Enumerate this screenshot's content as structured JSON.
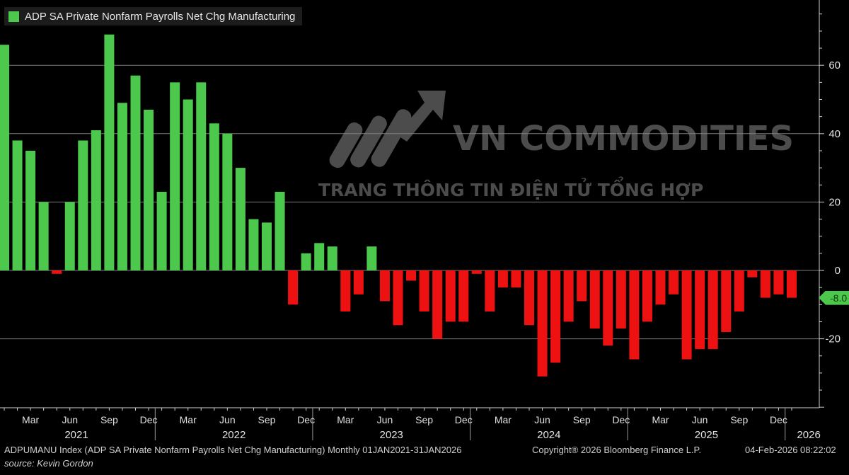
{
  "chart_data": {
    "type": "bar",
    "title": "",
    "legend": [
      {
        "label": "ADP SA Private Nonfarm Payrolls Net Chg Manufacturing",
        "color": "#4cc94c"
      }
    ],
    "positive_color": "#4cc94c",
    "negative_color": "#ee1111",
    "ylim": [
      -40,
      75
    ],
    "yticks": [
      60,
      40,
      20,
      0,
      -20
    ],
    "grid": true,
    "categories": [
      "Jan 2021",
      "Feb 2021",
      "Mar 2021",
      "Apr 2021",
      "May 2021",
      "Jun 2021",
      "Jul 2021",
      "Aug 2021",
      "Sep 2021",
      "Oct 2021",
      "Nov 2021",
      "Dec 2021",
      "Jan 2022",
      "Feb 2022",
      "Mar 2022",
      "Apr 2022",
      "May 2022",
      "Jun 2022",
      "Jul 2022",
      "Aug 2022",
      "Sep 2022",
      "Oct 2022",
      "Nov 2022",
      "Dec 2022",
      "Jan 2023",
      "Feb 2023",
      "Mar 2023",
      "Apr 2023",
      "May 2023",
      "Jun 2023",
      "Jul 2023",
      "Aug 2023",
      "Sep 2023",
      "Oct 2023",
      "Nov 2023",
      "Dec 2023",
      "Jan 2024",
      "Feb 2024",
      "Mar 2024",
      "Apr 2024",
      "May 2024",
      "Jun 2024",
      "Jul 2024",
      "Aug 2024",
      "Sep 2024",
      "Oct 2024",
      "Nov 2024",
      "Dec 2024",
      "Jan 2025",
      "Feb 2025",
      "Mar 2025",
      "Apr 2025",
      "May 2025",
      "Jun 2025",
      "Jul 2025",
      "Aug 2025",
      "Sep 2025",
      "Oct 2025",
      "Nov 2025",
      "Dec 2025",
      "Jan 2026"
    ],
    "values": [
      66,
      38,
      35,
      20,
      -1,
      20,
      38,
      41,
      69,
      49,
      57,
      47,
      23,
      55,
      50,
      55,
      43,
      40,
      30,
      15,
      14,
      23,
      -10,
      5,
      8,
      7,
      -12,
      -7,
      7,
      -9,
      -16,
      -3,
      -12,
      -20,
      -15,
      -15,
      -1,
      -12,
      -5,
      -5,
      -16,
      -31,
      -27,
      -15,
      -9,
      -17,
      -22,
      -17,
      -26,
      -15,
      -10,
      -7,
      -26,
      -23,
      -23,
      -18,
      -12,
      -2,
      -8,
      -7,
      -8
    ],
    "x_month_labels": [
      {
        "label": "Mar",
        "index": 2
      },
      {
        "label": "Jun",
        "index": 5
      },
      {
        "label": "Sep",
        "index": 8
      },
      {
        "label": "Dec",
        "index": 11
      },
      {
        "label": "Mar",
        "index": 14
      },
      {
        "label": "Jun",
        "index": 17
      },
      {
        "label": "Sep",
        "index": 20
      },
      {
        "label": "Dec",
        "index": 23
      },
      {
        "label": "Mar",
        "index": 26
      },
      {
        "label": "Jun",
        "index": 29
      },
      {
        "label": "Sep",
        "index": 32
      },
      {
        "label": "Dec",
        "index": 35
      },
      {
        "label": "Mar",
        "index": 38
      },
      {
        "label": "Jun",
        "index": 41
      },
      {
        "label": "Sep",
        "index": 44
      },
      {
        "label": "Dec",
        "index": 47
      },
      {
        "label": "Mar",
        "index": 50
      },
      {
        "label": "Jun",
        "index": 53
      },
      {
        "label": "Sep",
        "index": 56
      },
      {
        "label": "Dec",
        "index": 59
      }
    ],
    "x_year_labels": [
      {
        "label": "2021",
        "index": 5.5
      },
      {
        "label": "2022",
        "index": 17.5
      },
      {
        "label": "2023",
        "index": 29.5
      },
      {
        "label": "2024",
        "index": 41.5
      },
      {
        "label": "2025",
        "index": 53.5
      },
      {
        "label": "2026",
        "index": 61.3
      }
    ],
    "last_value_label": "-8.0"
  },
  "watermark": {
    "title": "VN COMMODITIES",
    "subtitle": "TRANG THÔNG TIN ĐIỆN TỬ TỔNG HỢP"
  },
  "footer": {
    "index_description": "ADPUMANU Index (ADP SA Private Nonfarm Payrolls Net Chg Manufacturing) Monthly 01JAN2021-31JAN2026",
    "copyright": "Copyright® 2026 Bloomberg Finance L.P.",
    "timestamp": "04-Feb-2026 08:22:02",
    "source": "source: Kevin Gordon"
  }
}
